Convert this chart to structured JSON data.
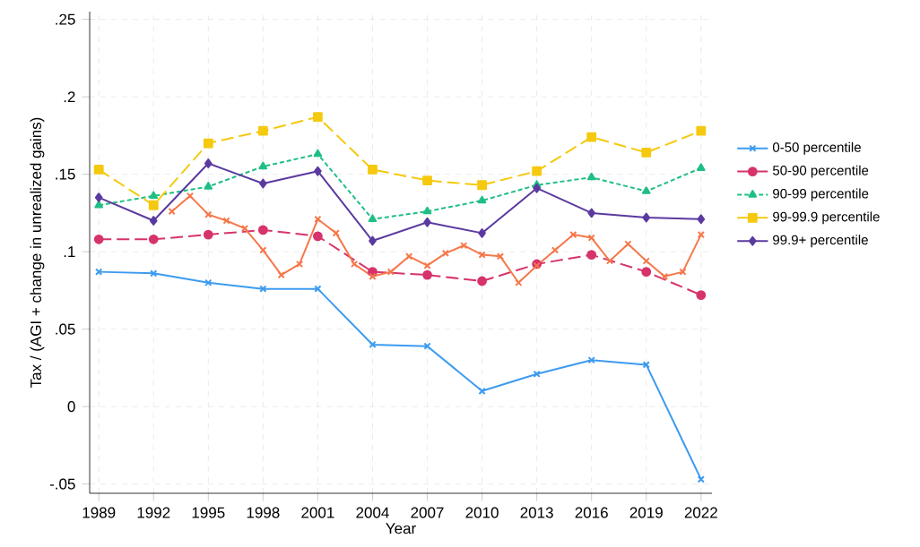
{
  "chart_data": {
    "type": "line",
    "xlabel": "Year",
    "ylabel": "Tax / (AGI + change in unrealized gains)",
    "xlim": [
      1988.5,
      2022.6
    ],
    "xticks": [
      1989,
      1992,
      1995,
      1998,
      2001,
      2004,
      2007,
      2010,
      2013,
      2016,
      2019,
      2022
    ],
    "ylim": [
      -0.056,
      0.255
    ],
    "yticks": [
      {
        "value": -0.05,
        "label": "-.05"
      },
      0,
      {
        "value": 0.05,
        "label": ".05"
      },
      {
        "value": 0.1,
        "label": ".1"
      },
      {
        "value": 0.15,
        "label": ".15"
      },
      {
        "value": 0.2,
        "label": ".2"
      },
      {
        "value": 0.25,
        "label": ".25"
      }
    ],
    "grid": true,
    "legend": "right",
    "series": [
      {
        "name": "0-50 percentile",
        "color": "#3c9bf0",
        "marker": "cross",
        "line_style": "solid",
        "x": [
          1989,
          1992,
          1995,
          1998,
          2001,
          2004,
          2007,
          2010,
          2013,
          2016,
          2019,
          2022
        ],
        "values": [
          0.087,
          0.086,
          0.08,
          0.076,
          0.076,
          0.04,
          0.039,
          0.01,
          0.021,
          0.03,
          0.027,
          -0.047
        ]
      },
      {
        "name": "50-90 percentile",
        "color": "#d6336c",
        "marker": "circle",
        "line_style": "dashed",
        "x": [
          1989,
          1992,
          1995,
          1998,
          2001,
          2004,
          2007,
          2010,
          2013,
          2016,
          2019,
          2022
        ],
        "values": [
          0.108,
          0.108,
          0.111,
          0.114,
          0.11,
          0.087,
          0.085,
          0.081,
          0.092,
          0.098,
          0.087,
          0.072
        ]
      },
      {
        "name": "90-99 percentile",
        "color": "#1fbf84",
        "marker": "triangle",
        "line_style": "dotted",
        "x": [
          1989,
          1992,
          1995,
          1998,
          2001,
          2004,
          2007,
          2010,
          2013,
          2016,
          2019,
          2022
        ],
        "values": [
          0.13,
          0.136,
          0.142,
          0.155,
          0.163,
          0.121,
          0.126,
          0.133,
          0.143,
          0.148,
          0.139,
          0.154
        ]
      },
      {
        "name": "99-99.9 percentile",
        "color": "#f5c90f",
        "marker": "square",
        "line_style": "dashed",
        "x": [
          1989,
          1992,
          1995,
          1998,
          2001,
          2004,
          2007,
          2010,
          2013,
          2016,
          2019,
          2022
        ],
        "values": [
          0.153,
          0.13,
          0.17,
          0.178,
          0.187,
          0.153,
          0.146,
          0.143,
          0.152,
          0.174,
          0.164,
          0.178
        ]
      },
      {
        "name": "99.9+ percentile",
        "color": "#5b3aa0",
        "marker": "diamond",
        "line_style": "solid",
        "x": [
          1989,
          1992,
          1995,
          1998,
          2001,
          2004,
          2007,
          2010,
          2013,
          2016,
          2019,
          2022
        ],
        "values": [
          0.135,
          0.12,
          0.157,
          0.144,
          0.152,
          0.107,
          0.119,
          0.112,
          0.141,
          0.125,
          0.122,
          0.121
        ]
      },
      {
        "color": "#f5784a",
        "marker": "cross",
        "line_style": "solid",
        "x": [
          1993,
          1994,
          1995,
          1996,
          1997,
          1998,
          1999,
          2000,
          2001,
          2002,
          2003,
          2004,
          2005,
          2006,
          2007,
          2008,
          2009,
          2010,
          2011,
          2012,
          2013,
          2014,
          2015,
          2016,
          2017,
          2018,
          2019,
          2020,
          2021,
          2022
        ],
        "values": [
          0.126,
          0.136,
          0.124,
          0.12,
          0.115,
          0.101,
          0.085,
          0.092,
          0.121,
          0.112,
          0.092,
          0.084,
          0.087,
          0.097,
          0.091,
          0.099,
          0.104,
          0.098,
          0.097,
          0.08,
          0.091,
          0.101,
          0.111,
          0.109,
          0.094,
          0.105,
          0.094,
          0.084,
          0.087,
          0.111
        ]
      }
    ]
  }
}
